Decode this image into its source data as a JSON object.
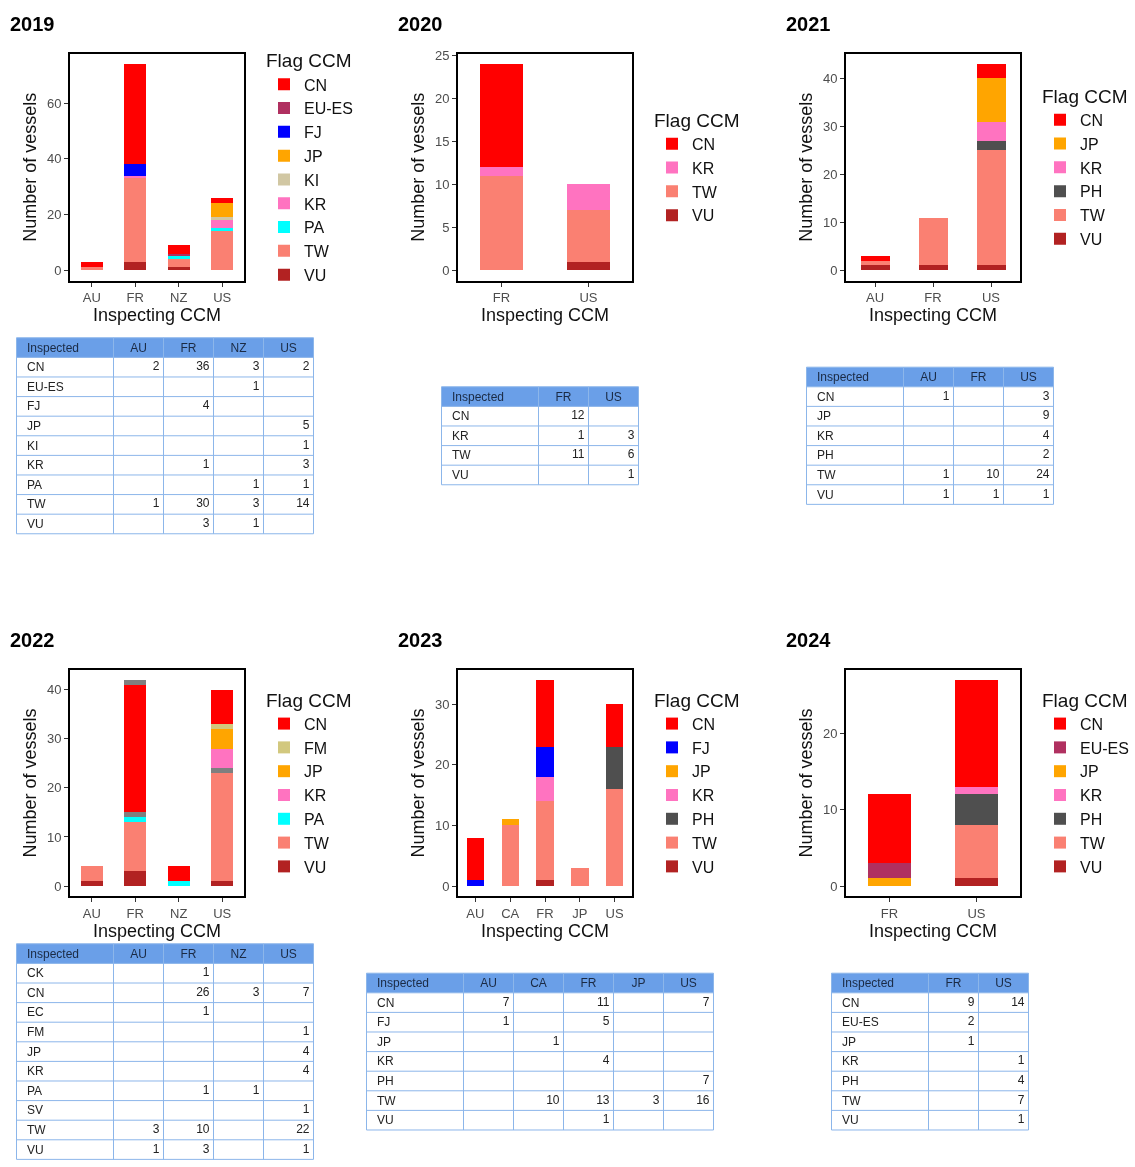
{
  "chart_data": [
    {
      "type": "bar",
      "title": "2019",
      "xlabel": "Inspecting CCM",
      "ylabel": "Number of vessels",
      "legend_title": "Flag CCM",
      "stacked": true,
      "legend": "right",
      "categories": [
        "AU",
        "FR",
        "NZ",
        "US"
      ],
      "ylim": [
        -3.7,
        77.7
      ],
      "yticks": [
        0,
        20,
        40,
        60
      ],
      "series": [
        {
          "name": "VU",
          "color": "#b22222",
          "values": [
            null,
            3,
            1,
            null
          ]
        },
        {
          "name": "TW",
          "color": "#fa8072",
          "values": [
            1,
            30,
            3,
            14
          ]
        },
        {
          "name": "PA",
          "color": "#00ffff",
          "values": [
            null,
            null,
            1,
            1
          ]
        },
        {
          "name": "KR",
          "color": "#ff73c0",
          "values": [
            null,
            1,
            null,
            3
          ]
        },
        {
          "name": "KI",
          "color": "#d1c7a3",
          "values": [
            null,
            null,
            null,
            1
          ]
        },
        {
          "name": "JP",
          "color": "#ffa500",
          "values": [
            null,
            null,
            null,
            5
          ]
        },
        {
          "name": "FJ",
          "color": "#0000ff",
          "values": [
            null,
            4,
            null,
            null
          ]
        },
        {
          "name": "EU-ES",
          "color": "#b03060",
          "values": [
            null,
            null,
            1,
            null
          ]
        },
        {
          "name": "CN",
          "color": "#ff0000",
          "values": [
            2,
            36,
            3,
            2
          ]
        }
      ]
    },
    {
      "type": "heatmap",
      "ylabel": "Inspected",
      "data_labels": true,
      "categories": [
        "AU",
        "FR",
        "NZ",
        "US"
      ],
      "y_categories": [
        "CN",
        "EU-ES",
        "FJ",
        "JP",
        "KI",
        "KR",
        "PA",
        "TW",
        "VU"
      ],
      "cells": [
        [
          2,
          36,
          3,
          2
        ],
        [
          null,
          null,
          1,
          null
        ],
        [
          null,
          4,
          null,
          null
        ],
        [
          null,
          null,
          null,
          5
        ],
        [
          null,
          null,
          null,
          1
        ],
        [
          null,
          1,
          null,
          3
        ],
        [
          null,
          null,
          1,
          1
        ],
        [
          1,
          30,
          3,
          14
        ],
        [
          null,
          3,
          1,
          null
        ]
      ]
    },
    {
      "type": "bar",
      "title": "2020",
      "xlabel": "Inspecting CCM",
      "ylabel": "Number of vessels",
      "legend_title": "Flag CCM",
      "stacked": true,
      "legend": "right",
      "categories": [
        "FR",
        "US"
      ],
      "ylim": [
        -1.2,
        25.2
      ],
      "yticks": [
        0,
        5,
        10,
        15,
        20,
        25
      ],
      "series": [
        {
          "name": "VU",
          "color": "#b22222",
          "values": [
            null,
            1
          ]
        },
        {
          "name": "TW",
          "color": "#fa8072",
          "values": [
            11,
            6
          ]
        },
        {
          "name": "KR",
          "color": "#ff73c0",
          "values": [
            1,
            3
          ]
        },
        {
          "name": "CN",
          "color": "#ff0000",
          "values": [
            12,
            null
          ]
        }
      ]
    },
    {
      "type": "heatmap",
      "ylabel": "Inspected",
      "data_labels": true,
      "categories": [
        "FR",
        "US"
      ],
      "y_categories": [
        "CN",
        "KR",
        "TW",
        "VU"
      ],
      "cells": [
        [
          12,
          null
        ],
        [
          1,
          3
        ],
        [
          11,
          6
        ],
        [
          null,
          1
        ]
      ]
    },
    {
      "type": "bar",
      "title": "2021",
      "xlabel": "Inspecting CCM",
      "ylabel": "Number of vessels",
      "legend_title": "Flag CCM",
      "stacked": true,
      "legend": "right",
      "categories": [
        "AU",
        "FR",
        "US"
      ],
      "ylim": [
        -2.15,
        45.15
      ],
      "yticks": [
        0,
        10,
        20,
        30,
        40
      ],
      "series": [
        {
          "name": "VU",
          "color": "#b22222",
          "values": [
            1,
            1,
            1
          ]
        },
        {
          "name": "TW",
          "color": "#fa8072",
          "values": [
            1,
            10,
            24
          ]
        },
        {
          "name": "PH",
          "color": "#4f4f4f",
          "values": [
            null,
            null,
            2
          ]
        },
        {
          "name": "KR",
          "color": "#ff73c0",
          "values": [
            null,
            null,
            4
          ]
        },
        {
          "name": "JP",
          "color": "#ffa500",
          "values": [
            null,
            null,
            9
          ]
        },
        {
          "name": "CN",
          "color": "#ff0000",
          "values": [
            1,
            null,
            3
          ]
        }
      ]
    },
    {
      "type": "heatmap",
      "ylabel": "Inspected",
      "data_labels": true,
      "categories": [
        "AU",
        "FR",
        "US"
      ],
      "y_categories": [
        "CN",
        "JP",
        "KR",
        "PH",
        "TW",
        "VU"
      ],
      "cells": [
        [
          1,
          null,
          3
        ],
        [
          null,
          null,
          9
        ],
        [
          null,
          null,
          4
        ],
        [
          null,
          null,
          2
        ],
        [
          1,
          10,
          24
        ],
        [
          1,
          1,
          1
        ]
      ]
    },
    {
      "type": "bar",
      "title": "2022",
      "xlabel": "Inspecting CCM",
      "ylabel": "Number of vessels",
      "legend_title": "Flag CCM",
      "stacked": true,
      "legend": "right",
      "categories": [
        "AU",
        "FR",
        "NZ",
        "US"
      ],
      "ylim": [
        -2.1,
        44.1
      ],
      "yticks": [
        0,
        10,
        20,
        30,
        40
      ],
      "series": [
        {
          "name": "VU",
          "color": "#b22222",
          "values": [
            1,
            3,
            null,
            1
          ]
        },
        {
          "name": "TW",
          "color": "#fa8072",
          "values": [
            3,
            10,
            null,
            22
          ]
        },
        {
          "color": "#7f7f7f",
          "values": [
            null,
            null,
            null,
            1
          ]
        },
        {
          "name": "PA",
          "color": "#00ffff",
          "values": [
            null,
            1,
            1,
            null
          ]
        },
        {
          "name": "KR",
          "color": "#ff73c0",
          "values": [
            null,
            null,
            null,
            4
          ]
        },
        {
          "name": "JP",
          "color": "#ffa500",
          "values": [
            null,
            null,
            null,
            4
          ]
        },
        {
          "name": "FM",
          "color": "#d2c87e",
          "values": [
            null,
            null,
            null,
            1
          ]
        },
        {
          "color": "#7f7f7f",
          "values": [
            null,
            1,
            null,
            null
          ]
        },
        {
          "name": "CN",
          "color": "#ff0000",
          "values": [
            null,
            26,
            3,
            7
          ]
        },
        {
          "color": "#7f7f7f",
          "values": [
            null,
            1,
            null,
            null
          ]
        }
      ]
    },
    {
      "type": "heatmap",
      "ylabel": "Inspected",
      "data_labels": true,
      "categories": [
        "AU",
        "FR",
        "NZ",
        "US"
      ],
      "y_categories": [
        "CK",
        "CN",
        "EC",
        "FM",
        "JP",
        "KR",
        "PA",
        "SV",
        "TW",
        "VU"
      ],
      "cells": [
        [
          null,
          1,
          null,
          null
        ],
        [
          null,
          26,
          3,
          7
        ],
        [
          null,
          1,
          null,
          null
        ],
        [
          null,
          null,
          null,
          1
        ],
        [
          null,
          null,
          null,
          4
        ],
        [
          null,
          null,
          null,
          4
        ],
        [
          null,
          1,
          1,
          null
        ],
        [
          null,
          null,
          null,
          1
        ],
        [
          3,
          10,
          null,
          22
        ],
        [
          1,
          3,
          null,
          1
        ]
      ]
    },
    {
      "type": "bar",
      "title": "2023",
      "xlabel": "Inspecting CCM",
      "ylabel": "Number of vessels",
      "legend_title": "Flag CCM",
      "stacked": true,
      "legend": "right",
      "categories": [
        "AU",
        "CA",
        "FR",
        "JP",
        "US"
      ],
      "ylim": [
        -1.7,
        35.7
      ],
      "yticks": [
        0,
        10,
        20,
        30
      ],
      "series": [
        {
          "name": "VU",
          "color": "#b22222",
          "values": [
            null,
            null,
            1,
            null,
            null
          ]
        },
        {
          "name": "TW",
          "color": "#fa8072",
          "values": [
            null,
            10,
            13,
            3,
            16
          ]
        },
        {
          "name": "PH",
          "color": "#4f4f4f",
          "values": [
            null,
            null,
            null,
            null,
            7
          ]
        },
        {
          "name": "KR",
          "color": "#ff73c0",
          "values": [
            null,
            null,
            4,
            null,
            null
          ]
        },
        {
          "name": "JP",
          "color": "#ffa500",
          "values": [
            null,
            1,
            null,
            null,
            null
          ]
        },
        {
          "name": "FJ",
          "color": "#0000ff",
          "values": [
            1,
            null,
            5,
            null,
            null
          ]
        },
        {
          "name": "CN",
          "color": "#ff0000",
          "values": [
            7,
            null,
            11,
            null,
            7
          ]
        }
      ]
    },
    {
      "type": "heatmap",
      "ylabel": "Inspected",
      "data_labels": true,
      "categories": [
        "AU",
        "CA",
        "FR",
        "JP",
        "US"
      ],
      "y_categories": [
        "CN",
        "FJ",
        "JP",
        "KR",
        "PH",
        "TW",
        "VU"
      ],
      "cells": [
        [
          7,
          null,
          11,
          null,
          7
        ],
        [
          1,
          null,
          5,
          null,
          null
        ],
        [
          null,
          1,
          null,
          null,
          null
        ],
        [
          null,
          null,
          4,
          null,
          null
        ],
        [
          null,
          null,
          null,
          null,
          7
        ],
        [
          null,
          10,
          13,
          3,
          16
        ],
        [
          null,
          null,
          1,
          null,
          null
        ]
      ]
    },
    {
      "type": "bar",
      "title": "2024",
      "xlabel": "Inspecting CCM",
      "ylabel": "Number of vessels",
      "legend_title": "Flag CCM",
      "stacked": true,
      "legend": "right",
      "categories": [
        "FR",
        "US"
      ],
      "ylim": [
        -1.35,
        28.35
      ],
      "yticks": [
        0,
        10,
        20
      ],
      "series": [
        {
          "name": "VU",
          "color": "#b22222",
          "values": [
            null,
            1
          ]
        },
        {
          "name": "TW",
          "color": "#fa8072",
          "values": [
            null,
            7
          ]
        },
        {
          "name": "PH",
          "color": "#4f4f4f",
          "values": [
            null,
            4
          ]
        },
        {
          "name": "KR",
          "color": "#ff73c0",
          "values": [
            null,
            1
          ]
        },
        {
          "name": "JP",
          "color": "#ffa500",
          "values": [
            1,
            null
          ]
        },
        {
          "name": "EU-ES",
          "color": "#b03060",
          "values": [
            2,
            null
          ]
        },
        {
          "name": "CN",
          "color": "#ff0000",
          "values": [
            9,
            14
          ]
        }
      ]
    },
    {
      "type": "heatmap",
      "ylabel": "Inspected",
      "data_labels": true,
      "categories": [
        "FR",
        "US"
      ],
      "y_categories": [
        "CN",
        "EU-ES",
        "JP",
        "KR",
        "PH",
        "TW",
        "VU"
      ],
      "cells": [
        [
          9,
          14
        ],
        [
          2,
          null
        ],
        [
          1,
          null
        ],
        [
          null,
          1
        ],
        [
          null,
          4
        ],
        [
          null,
          7
        ],
        [
          null,
          1
        ]
      ]
    }
  ]
}
